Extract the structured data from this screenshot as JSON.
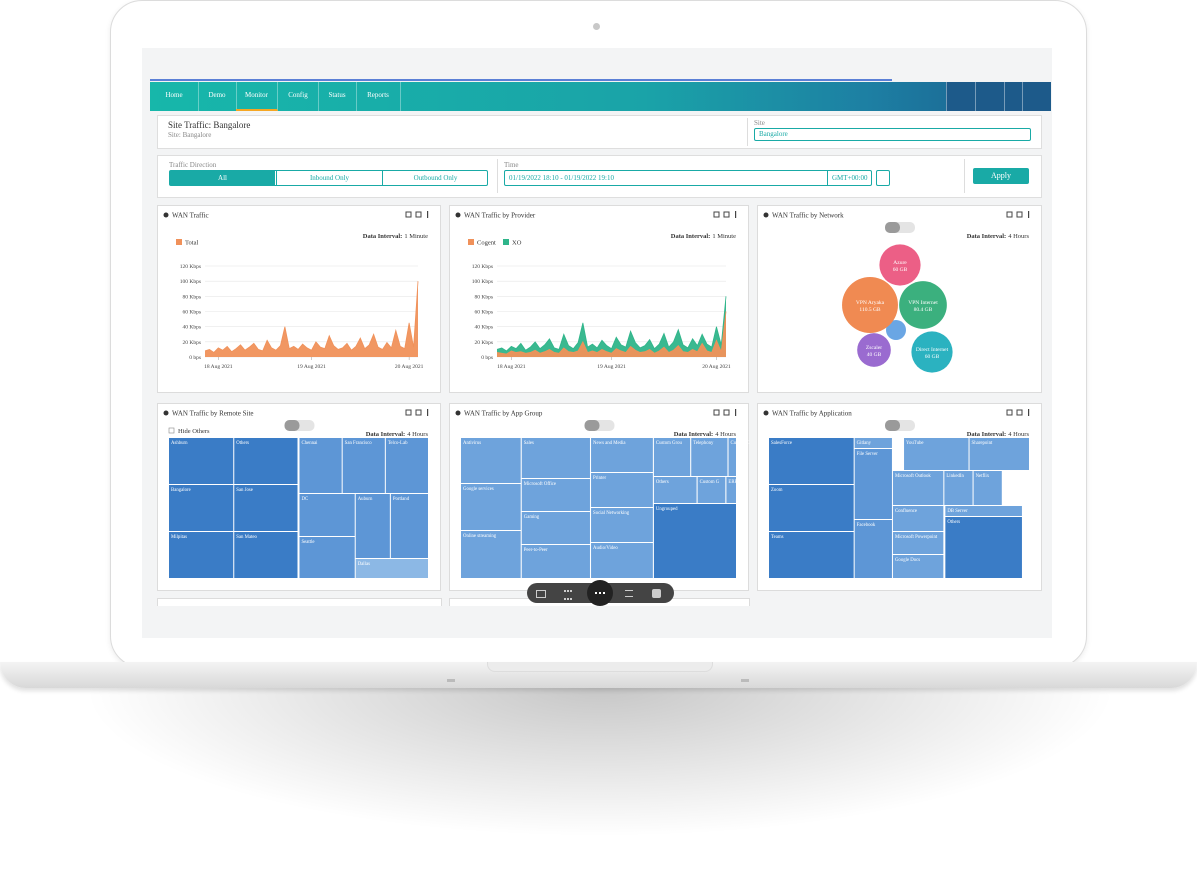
{
  "nav": {
    "tabs": [
      "Home",
      "Demo",
      "Monitor",
      "Config",
      "Status",
      "Reports"
    ]
  },
  "header": {
    "title": "Site Traffic: Bangalore",
    "subtitle": "Site: Bangalore",
    "site_label": "Site",
    "site_value": "Bangalore"
  },
  "filters": {
    "direction_label": "Traffic Direction",
    "directions": [
      "All",
      "Inbound Only",
      "Outbound Only"
    ],
    "time_label": "Time",
    "time_value": "01/19/2022 18:10 - 01/19/2022 19:10",
    "timezone": "GMT+00:00",
    "apply": "Apply"
  },
  "panels": [
    {
      "title": "WAN Traffic",
      "interval_label": "Data Interval:",
      "interval": "1 Minute",
      "chart": {
        "type": "area",
        "series": [
          {
            "name": "Total",
            "color": "#f0915a",
            "values": [
              8,
              10,
              6,
              12,
              9,
              14,
              7,
              11,
              16,
              9,
              13,
              18,
              10,
              8,
              22,
              12,
              9,
              15,
              40,
              11,
              14,
              10,
              17,
              12,
              9,
              20,
              13,
              11,
              28,
              15,
              10,
              12,
              18,
              9,
              14,
              25,
              11,
              16,
              30,
              13,
              10,
              19,
              12,
              35,
              14,
              11,
              45,
              13,
              100
            ]
          }
        ],
        "xlim": [
          0,
          48
        ],
        "xticks": [
          {
            "value": 3,
            "label": "18 Aug 2021"
          },
          {
            "value": 24,
            "label": "19 Aug 2021"
          },
          {
            "value": 46,
            "label": "20 Aug 2021"
          }
        ],
        "ylim": [
          0,
          120
        ],
        "yticks": [
          {
            "value": 0,
            "label": "0 bps"
          },
          {
            "value": 20,
            "label": "20 Kbps"
          },
          {
            "value": 40,
            "label": "40 Kbps"
          },
          {
            "value": 60,
            "label": "60 Kbps"
          },
          {
            "value": 80,
            "label": "80 Kbps"
          },
          {
            "value": 100,
            "label": "100 Kbps"
          },
          {
            "value": 120,
            "label": "120 Kbps"
          }
        ],
        "grid": true
      }
    },
    {
      "title": "WAN Traffic by Provider",
      "interval_label": "Data Interval:",
      "interval": "1 Minute",
      "chart": {
        "type": "area",
        "series": [
          {
            "name": "Cogent",
            "color": "#f0915a",
            "values": [
              6,
              5,
              4,
              8,
              6,
              7,
              5,
              6,
              9,
              5,
              7,
              10,
              6,
              5,
              12,
              7,
              6,
              8,
              20,
              6,
              8,
              6,
              10,
              7,
              5,
              11,
              8,
              6,
              14,
              9,
              6,
              7,
              10,
              5,
              8,
              13,
              6,
              9,
              15,
              7,
              6,
              10,
              7,
              18,
              8,
              6,
              22,
              7,
              60
            ]
          },
          {
            "name": "XO",
            "color": "#2fb58a",
            "values": [
              10,
              12,
              8,
              14,
              11,
              18,
              9,
              13,
              20,
              11,
              16,
              24,
              12,
              10,
              30,
              15,
              11,
              19,
              45,
              13,
              17,
              12,
              22,
              15,
              11,
              26,
              16,
              13,
              34,
              19,
              12,
              15,
              23,
              11,
              17,
              31,
              13,
              20,
              36,
              16,
              12,
              24,
              15,
              30,
              17,
              13,
              40,
              16,
              80
            ]
          }
        ],
        "xlim": [
          0,
          48
        ],
        "xticks": [
          {
            "value": 3,
            "label": "18 Aug 2021"
          },
          {
            "value": 24,
            "label": "19 Aug 2021"
          },
          {
            "value": 46,
            "label": "20 Aug 2021"
          }
        ],
        "ylim": [
          0,
          120
        ],
        "yticks": [
          {
            "value": 0,
            "label": "0 bps"
          },
          {
            "value": 20,
            "label": "20 Kbps"
          },
          {
            "value": 40,
            "label": "40 Kbps"
          },
          {
            "value": 60,
            "label": "60 Kbps"
          },
          {
            "value": 80,
            "label": "80 Kbps"
          },
          {
            "value": 100,
            "label": "100 Kbps"
          },
          {
            "value": 120,
            "label": "120 Kbps"
          }
        ],
        "grid": true
      }
    },
    {
      "title": "WAN Traffic by Network",
      "interval_label": "Data Interval:",
      "interval": "4 Hours",
      "chart": {
        "type": "bubble",
        "names": [
          "Azure",
          "VPN Aryaka",
          "VPN Internet",
          "Zscaler",
          "Direct Internet"
        ],
        "values": [
          60,
          110.5,
          80.4,
          40,
          60
        ],
        "value_labels": [
          "60 GB",
          "110.5 GB",
          "80.4 GB",
          "40 GB",
          "60 GB"
        ],
        "colors": [
          "#ec5f86",
          "#f08a52",
          "#3bb07e",
          "#9a6bd0",
          "#2bb2c0"
        ]
      }
    },
    {
      "title": "WAN Traffic by Remote Site",
      "interval_label": "Data Interval:",
      "interval": "4 Hours",
      "hide_others": "Hide Others",
      "chart": {
        "type": "treemap",
        "tiles": [
          "Ashburn",
          "Others",
          "Chennai",
          "San Francisco",
          "Telco-Lab",
          "Bangalore",
          "San Jose",
          "DC",
          "Auburn",
          "Portland",
          "Milpitas",
          "San Mateo",
          "Seattle",
          "Dallas"
        ]
      }
    },
    {
      "title": "WAN Traffic by App Group",
      "interval_label": "Data Interval:",
      "interval": "4 Hours",
      "chart": {
        "type": "treemap",
        "tiles": [
          "Antivirus",
          "Sales",
          "News and Media",
          "Custom Grou",
          "Telephony",
          "Custom C",
          "Google services",
          "Microsoft Office",
          "Printer",
          "Others",
          "Custom G",
          "ERP",
          "Gaming",
          "Social Networking",
          "Online streaming",
          "Ungrouped",
          "Peer-to-Peer",
          "Audio/Video"
        ]
      }
    },
    {
      "title": "WAN Traffic by Application",
      "interval_label": "Data Interval:",
      "interval": "4 Hours",
      "chart": {
        "type": "treemap",
        "tiles": [
          "SalesForce",
          "Gitlany",
          "YouTube",
          "Sharepoint",
          "File Server",
          "Zoom",
          "Microsoft Outlook",
          "LinkedIn",
          "Netflix",
          "Confluence",
          "DB Server",
          "Facebook",
          "Teams",
          "Microsoft Powerpoint",
          "Others",
          "Google Docs"
        ]
      }
    }
  ]
}
